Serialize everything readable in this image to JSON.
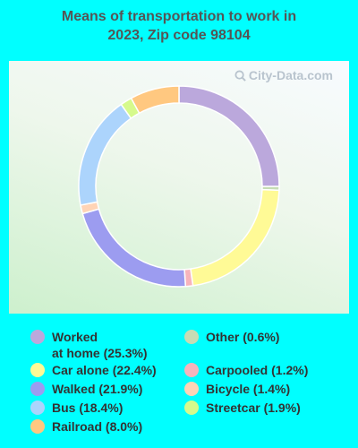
{
  "title_line1": "Means of transportation to work in",
  "title_line2": "2023, Zip code 98104",
  "watermark": "City-Data.com",
  "chart_data": {
    "type": "pie",
    "style": "donut",
    "title": "Means of transportation to work in 2023, Zip code 98104",
    "slices": [
      {
        "label": "Worked at home (25.3%)",
        "value": 25.3,
        "color": "#bba8dc"
      },
      {
        "label": "Other (0.6%)",
        "value": 0.6,
        "color": "#c6dcb4"
      },
      {
        "label": "Car alone (22.4%)",
        "value": 22.4,
        "color": "#fffa96"
      },
      {
        "label": "Carpooled (1.2%)",
        "value": 1.2,
        "color": "#f7b4bc"
      },
      {
        "label": "Walked (21.9%)",
        "value": 21.9,
        "color": "#9c9cf0"
      },
      {
        "label": "Bicycle (1.4%)",
        "value": 1.4,
        "color": "#ffd4b6"
      },
      {
        "label": "Bus (18.4%)",
        "value": 18.4,
        "color": "#acd4fc"
      },
      {
        "label": "Streetcar (1.9%)",
        "value": 1.9,
        "color": "#d6fa8c"
      },
      {
        "label": "Railroad (8.0%)",
        "value": 8.0,
        "color": "#ffc880"
      }
    ],
    "legend_position": "bottom"
  },
  "legend": {
    "left": [
      {
        "line1": "Worked",
        "line2": "at home (25.3%)",
        "color": "#bba8dc"
      },
      {
        "line1": "Car alone (22.4%)",
        "line2": "",
        "color": "#fffa96"
      },
      {
        "line1": "Walked (21.9%)",
        "line2": "",
        "color": "#9c9cf0"
      },
      {
        "line1": "Bus (18.4%)",
        "line2": "",
        "color": "#acd4fc"
      },
      {
        "line1": "Railroad (8.0%)",
        "line2": "",
        "color": "#ffc880"
      }
    ],
    "right": [
      {
        "line1": "Other (0.6%)",
        "line2": "",
        "color": "#c6dcb4"
      },
      {
        "line1": "Carpooled (1.2%)",
        "line2": "",
        "color": "#f7b4bc"
      },
      {
        "line1": "Bicycle (1.4%)",
        "line2": "",
        "color": "#ffd4b6"
      },
      {
        "line1": "Streetcar (1.9%)",
        "line2": "",
        "color": "#d6fa8c"
      }
    ]
  }
}
